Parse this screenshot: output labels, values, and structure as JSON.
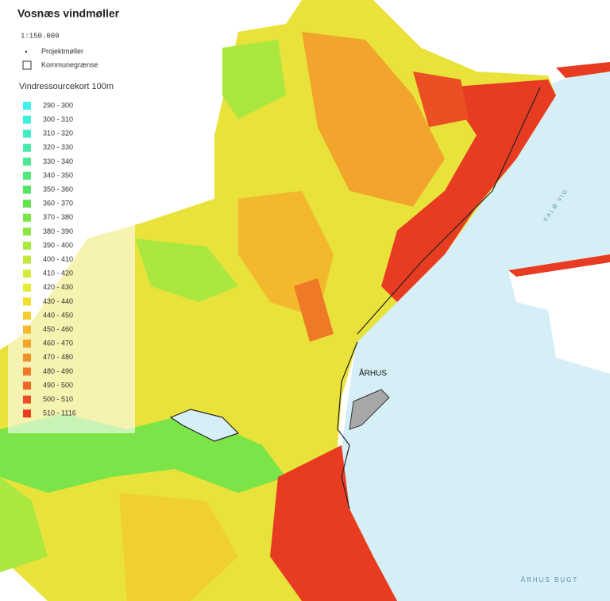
{
  "header": {
    "title": "Vosnæs vindmøller",
    "scale": "1:150.000"
  },
  "symbols": [
    {
      "label": "Projektmøller"
    },
    {
      "label": "Kommunegrænse"
    }
  ],
  "legend": {
    "title": "Vindressourcekort 100m",
    "items": [
      {
        "label": "290 - 300",
        "color": "#3ff2ee"
      },
      {
        "label": "300 - 310",
        "color": "#40eedc"
      },
      {
        "label": "310 - 320",
        "color": "#44ecc4"
      },
      {
        "label": "320 - 330",
        "color": "#48eaac"
      },
      {
        "label": "330 - 340",
        "color": "#4ce892"
      },
      {
        "label": "340 - 350",
        "color": "#50e67a"
      },
      {
        "label": "350 - 360",
        "color": "#56e462"
      },
      {
        "label": "360 - 370",
        "color": "#62e24e"
      },
      {
        "label": "370 - 380",
        "color": "#7ae448"
      },
      {
        "label": "380 - 390",
        "color": "#92e644"
      },
      {
        "label": "390 - 400",
        "color": "#aae840"
      },
      {
        "label": "400 - 410",
        "color": "#c2ea3e"
      },
      {
        "label": "410 - 420",
        "color": "#d6ec3c"
      },
      {
        "label": "420 - 430",
        "color": "#e8ea38"
      },
      {
        "label": "430 - 440",
        "color": "#f2dc30"
      },
      {
        "label": "440 - 450",
        "color": "#f4cc2e"
      },
      {
        "label": "450 - 460",
        "color": "#f4b82e"
      },
      {
        "label": "460 - 470",
        "color": "#f2a42c"
      },
      {
        "label": "470 - 480",
        "color": "#f0902a"
      },
      {
        "label": "480 - 490",
        "color": "#ee7a28"
      },
      {
        "label": "490 - 500",
        "color": "#ec6426"
      },
      {
        "label": "500 - 510",
        "color": "#ea5024"
      },
      {
        "label": "510 - 1116",
        "color": "#e83c22"
      }
    ]
  },
  "places": [
    {
      "label": "ÅRHUS"
    },
    {
      "label": "KALØ VIG"
    },
    {
      "label": "ÅRHUS BUGT"
    }
  ]
}
